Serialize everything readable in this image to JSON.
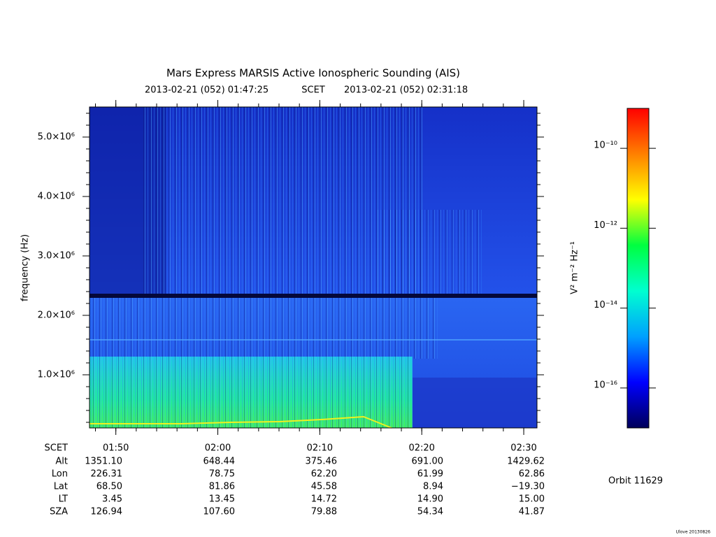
{
  "chart_data": {
    "type": "spectrogram",
    "title": "Mars Express MARSIS Active Ionospheric Sounding (AIS)",
    "subtitle_start": "2013-02-21 (052) 01:47:25",
    "subtitle_mid": "SCET",
    "subtitle_end": "2013-02-21 (052) 02:31:18",
    "ylabel": "frequency (Hz)",
    "xlabel": "SCET",
    "xlim": [
      107.4167,
      151.3
    ],
    "xticks": [
      {
        "value": 110,
        "label": "01:50"
      },
      {
        "value": 120,
        "label": "02:00"
      },
      {
        "value": 130,
        "label": "02:10"
      },
      {
        "value": 140,
        "label": "02:20"
      },
      {
        "value": 150,
        "label": "02:30"
      }
    ],
    "ylim": [
      106000,
      5506000
    ],
    "yticks": [
      {
        "value": 1000000,
        "label": "1.0×10⁶"
      },
      {
        "value": 2000000,
        "label": "2.0×10⁶"
      },
      {
        "value": 3000000,
        "label": "3.0×10⁶"
      },
      {
        "value": 4000000,
        "label": "4.0×10⁶"
      },
      {
        "value": 5000000,
        "label": "5.0×10⁶"
      }
    ],
    "zscale": "log",
    "zlim": [
      1e-17,
      1e-09
    ],
    "zticks": [
      {
        "value": 1e-16,
        "label": "10⁻¹⁶"
      },
      {
        "value": 1e-14,
        "label": "10⁻¹⁴"
      },
      {
        "value": 1e-12,
        "label": "10⁻¹²"
      },
      {
        "value": 1e-10,
        "label": "10⁻¹⁰"
      }
    ],
    "zlabel": "V² m⁻² Hz⁻¹",
    "colormap": [
      "#00005a",
      "#0000ff",
      "#00a0ff",
      "#00ffd0",
      "#00ff40",
      "#ffff00",
      "#ff8000",
      "#ff0000"
    ],
    "ephemeris": [
      {
        "label": "Alt",
        "values": [
          "1351.10",
          "648.44",
          "375.46",
          "691.00",
          "1429.62"
        ]
      },
      {
        "label": "Lon",
        "values": [
          "226.31",
          "78.75",
          "62.20",
          "61.99",
          "62.86"
        ]
      },
      {
        "label": "Lat",
        "values": [
          "68.50",
          "81.86",
          "45.58",
          "8.94",
          "−19.30"
        ]
      },
      {
        "label": "LT",
        "values": [
          "3.45",
          "13.45",
          "14.72",
          "14.90",
          "15.00"
        ]
      },
      {
        "label": "SZA",
        "values": [
          "126.94",
          "107.60",
          "79.88",
          "54.34",
          "41.87"
        ]
      }
    ],
    "orbit": "Orbit 11629",
    "footer": "Ulove 20130826"
  }
}
